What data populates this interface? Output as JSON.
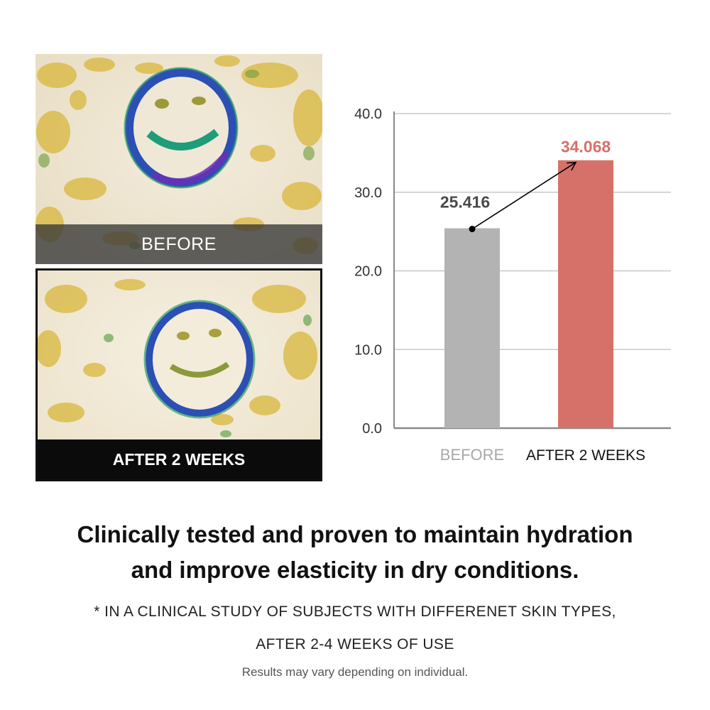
{
  "photos": {
    "before_caption": "BEFORE",
    "after_caption": "AFTER 2 WEEKS"
  },
  "chart_data": {
    "type": "bar",
    "categories": [
      "BEFORE",
      "AFTER 2 WEEKS"
    ],
    "values": [
      25.416,
      34.068
    ],
    "value_labels": [
      "25.416",
      "34.068"
    ],
    "yticks": [
      "0.0",
      "10.0",
      "20.0",
      "30.0",
      "40.0"
    ],
    "ylim": [
      0,
      40
    ],
    "grid": true,
    "colors": {
      "before_bar": "#b3b3b3",
      "after_bar": "#d6716a",
      "before_label": "#4a4a4a",
      "after_label": "#d6716a",
      "before_category": "#a8a8a8",
      "after_category": "#111111",
      "grid": "#c8c8c8",
      "axis": "#8a8a8a"
    },
    "annotation": "arrow from BEFORE value to AFTER value"
  },
  "text": {
    "headline_line1": "Clinically tested and proven to maintain hydration",
    "headline_line2": "and improve elasticity in dry conditions.",
    "note_line1": "* IN A CLINICAL STUDY OF SUBJECTS WITH DIFFERENET SKIN TYPES,",
    "note_line2": "AFTER 2-4 WEEKS OF USE",
    "disclaimer": "Results may vary depending on individual."
  }
}
